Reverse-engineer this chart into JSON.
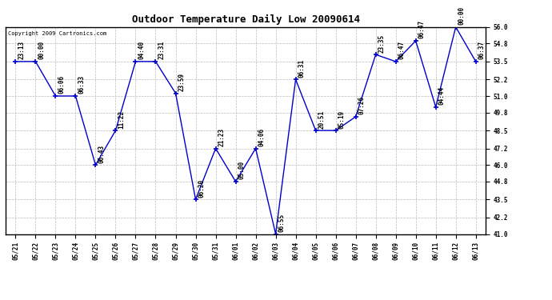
{
  "title": "Outdoor Temperature Daily Low 20090614",
  "copyright": "Copyright 2009 Cartronics.com",
  "x_labels": [
    "05/21",
    "05/22",
    "05/23",
    "05/24",
    "05/25",
    "05/26",
    "05/27",
    "05/28",
    "05/29",
    "05/30",
    "05/31",
    "06/01",
    "06/02",
    "06/03",
    "06/04",
    "06/05",
    "06/06",
    "06/07",
    "06/08",
    "06/09",
    "06/10",
    "06/11",
    "06/12",
    "06/13"
  ],
  "y_values": [
    53.5,
    53.5,
    51.0,
    51.0,
    46.0,
    48.5,
    53.5,
    53.5,
    51.2,
    43.5,
    47.2,
    44.8,
    47.2,
    41.0,
    52.2,
    48.5,
    48.5,
    49.5,
    54.0,
    53.5,
    55.0,
    50.2,
    56.0,
    53.5
  ],
  "time_labels": [
    "23:13",
    "00:00",
    "06:06",
    "06:33",
    "06:43",
    "11:22",
    "04:40",
    "23:31",
    "23:59",
    "06:20",
    "21:23",
    "05:00",
    "04:06",
    "06:55",
    "06:31",
    "20:51",
    "05:19",
    "07:26",
    "23:35",
    "06:47",
    "06:47",
    "04:44",
    "00:00",
    "06:37"
  ],
  "ylim": [
    41.0,
    56.0
  ],
  "yticks": [
    41.0,
    42.2,
    43.5,
    44.8,
    46.0,
    47.2,
    48.5,
    49.8,
    51.0,
    52.2,
    53.5,
    54.8,
    56.0
  ],
  "line_color": "#0000CC",
  "marker_color": "#0000CC",
  "bg_color": "#ffffff",
  "grid_color": "#bbbbbb",
  "title_fontsize": 9,
  "label_fontsize": 5.5,
  "tick_fontsize": 5.5,
  "copyright_fontsize": 5
}
